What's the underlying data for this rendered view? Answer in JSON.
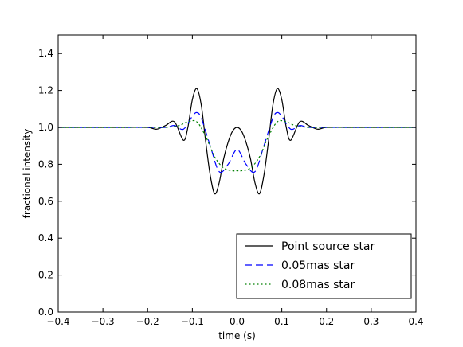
{
  "chart_data": {
    "type": "line",
    "title": "",
    "xlabel": "time (s)",
    "ylabel": "fractional intensity",
    "xlim": [
      -0.4,
      0.4
    ],
    "ylim": [
      0.0,
      1.5
    ],
    "xticks": [
      -0.4,
      -0.3,
      -0.2,
      -0.1,
      0.0,
      0.1,
      0.2,
      0.3,
      0.4
    ],
    "xtick_labels": [
      "−0.4",
      "−0.3",
      "−0.2",
      "−0.1",
      "0.0",
      "0.1",
      "0.2",
      "0.3",
      "0.4"
    ],
    "yticks": [
      0.0,
      0.2,
      0.4,
      0.6,
      0.8,
      1.0,
      1.2,
      1.4
    ],
    "ytick_labels": [
      "0.0",
      "0.2",
      "0.4",
      "0.6",
      "0.8",
      "1.0",
      "1.2",
      "1.4"
    ],
    "grid": false,
    "legend": "bottom-right",
    "series": [
      {
        "name": "Point source star",
        "color": "#000000",
        "dash": "solid",
        "x": [
          -0.4,
          -0.3,
          -0.25,
          -0.2,
          -0.18,
          -0.16,
          -0.14,
          -0.12,
          -0.11,
          -0.1,
          -0.09,
          -0.08,
          -0.07,
          -0.06,
          -0.05,
          -0.04,
          -0.03,
          -0.02,
          -0.01,
          0.0,
          0.01,
          0.02,
          0.03,
          0.04,
          0.05,
          0.06,
          0.07,
          0.08,
          0.09,
          0.1,
          0.11,
          0.12,
          0.14,
          0.16,
          0.18,
          0.2,
          0.25,
          0.3,
          0.4
        ],
        "y": [
          1.0,
          1.0,
          1.0,
          1.0,
          0.99,
          1.01,
          1.03,
          0.93,
          1.0,
          1.15,
          1.21,
          1.12,
          0.92,
          0.74,
          0.64,
          0.7,
          0.83,
          0.92,
          0.98,
          1.0,
          0.98,
          0.92,
          0.83,
          0.7,
          0.64,
          0.74,
          0.92,
          1.12,
          1.21,
          1.15,
          1.0,
          0.93,
          1.03,
          1.01,
          0.99,
          1.0,
          1.0,
          1.0,
          1.0
        ]
      },
      {
        "name": "0.05mas star",
        "color": "#0000ff",
        "dash": "dashed",
        "x": [
          -0.4,
          -0.2,
          -0.16,
          -0.14,
          -0.12,
          -0.1,
          -0.09,
          -0.08,
          -0.06,
          -0.04,
          -0.02,
          0.0,
          0.02,
          0.04,
          0.06,
          0.08,
          0.09,
          0.1,
          0.12,
          0.14,
          0.16,
          0.2,
          0.4
        ],
        "y": [
          1.0,
          1.0,
          1.0,
          1.01,
          0.99,
          1.06,
          1.08,
          1.05,
          0.9,
          0.76,
          0.8,
          0.88,
          0.8,
          0.76,
          0.9,
          1.05,
          1.08,
          1.06,
          0.99,
          1.01,
          1.0,
          1.0,
          1.0
        ]
      },
      {
        "name": "0.08mas star",
        "color": "#008000",
        "dash": "dotted",
        "x": [
          -0.4,
          -0.2,
          -0.16,
          -0.13,
          -0.11,
          -0.09,
          -0.07,
          -0.05,
          -0.03,
          -0.01,
          0.0,
          0.01,
          0.03,
          0.05,
          0.07,
          0.09,
          0.11,
          0.13,
          0.16,
          0.2,
          0.4
        ],
        "y": [
          1.0,
          1.0,
          1.0,
          1.01,
          1.03,
          1.03,
          0.95,
          0.84,
          0.78,
          0.765,
          0.765,
          0.765,
          0.78,
          0.84,
          0.95,
          1.03,
          1.03,
          1.01,
          1.0,
          1.0,
          1.0
        ]
      }
    ]
  }
}
